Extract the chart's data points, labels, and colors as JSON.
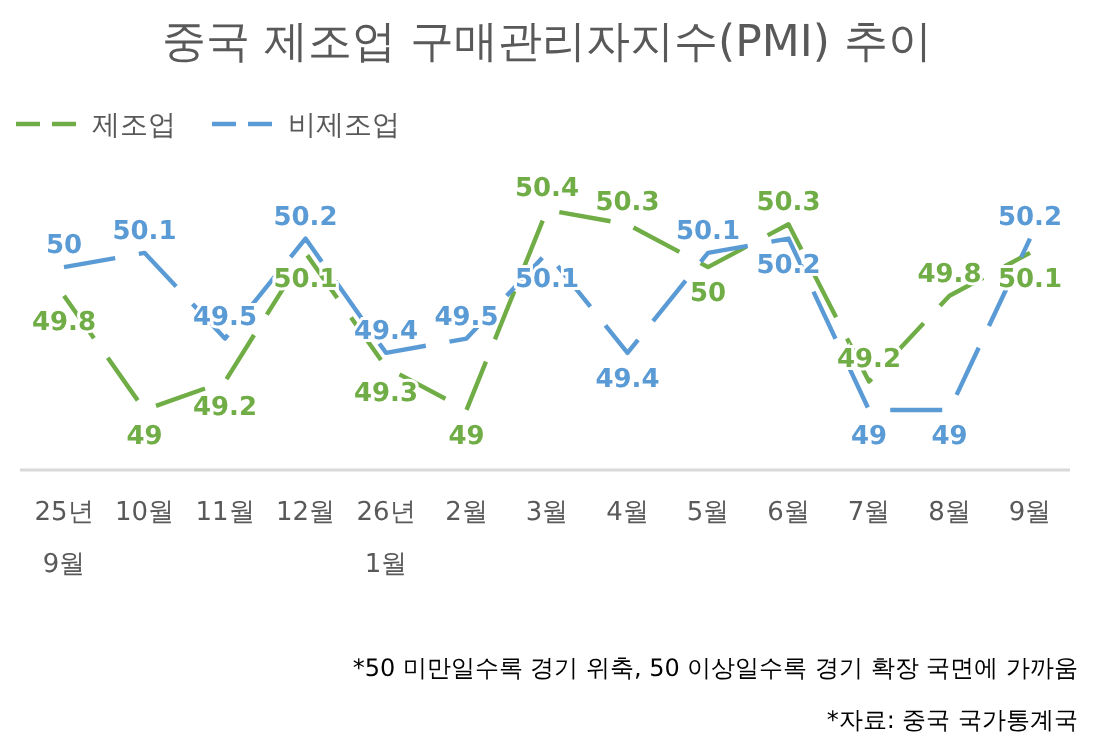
{
  "chart_data": {
    "type": "line",
    "title": "중국 제조업 구매관리자지수(PMI) 추이",
    "categories": [
      "25년\n9월",
      "10월",
      "11월",
      "12월",
      "26년\n1월",
      "2월",
      "3월",
      "4월",
      "5월",
      "6월",
      "7월",
      "8월",
      "9월"
    ],
    "series": [
      {
        "name": "제조업",
        "color": "#70ad47",
        "values": [
          49.8,
          49,
          49.2,
          50.1,
          49.3,
          49,
          50.4,
          50.3,
          50,
          50.3,
          49.2,
          49.8,
          50.1
        ]
      },
      {
        "name": "비제조업",
        "color": "#5b9bd5",
        "values": [
          50,
          50.1,
          49.5,
          50.2,
          49.4,
          49.5,
          50.1,
          49.4,
          50.1,
          50.2,
          49,
          49,
          50.2
        ]
      }
    ],
    "relative": false,
    "data_labels": true,
    "legend": "top left",
    "marker": "none",
    "line_style": "dashed",
    "grid": false,
    "annotations": [
      "*50 미만일수록 경기 위축, 50 이상일수록 경기 확장 국면에 가까움",
      "*자료: 중국 국가통계국"
    ]
  }
}
